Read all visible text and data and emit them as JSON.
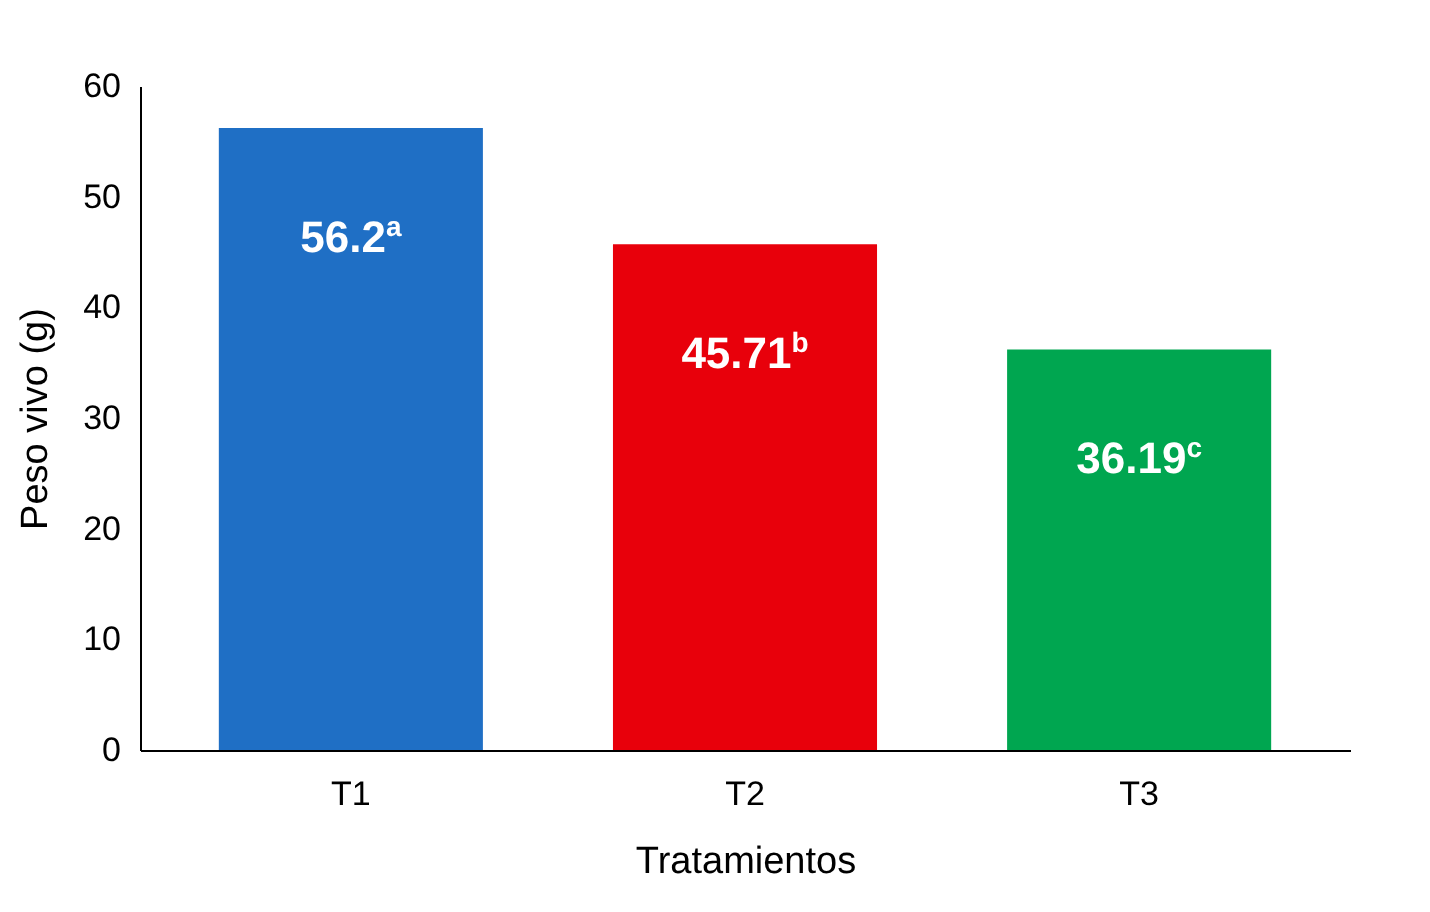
{
  "chart_data": {
    "type": "bar",
    "xlabel": "Tratamientos",
    "ylabel": "Peso vivo (g)",
    "categories": [
      "T1",
      "T2",
      "T3"
    ],
    "values": [
      56.2,
      45.71,
      36.19
    ],
    "colors": [
      "#1f6fc5",
      "#e8000b",
      "#00a650"
    ],
    "value_labels": [
      "56.2$^{a}$",
      "45.71$^{b}$",
      "36.19$^{c}$"
    ],
    "ylim": [
      0,
      60
    ],
    "yticks": [
      0,
      10,
      20,
      30,
      40,
      50,
      60
    ],
    "grid": false
  }
}
